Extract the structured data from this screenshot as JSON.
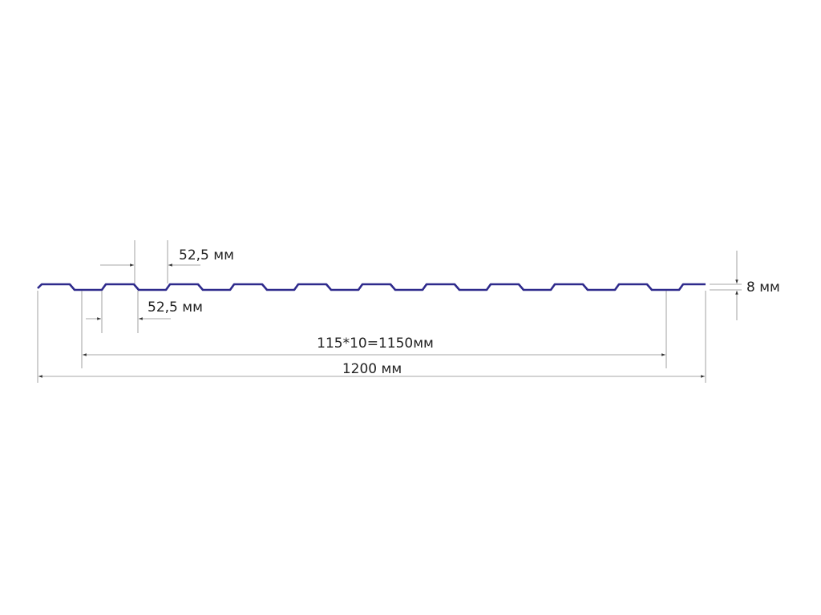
{
  "diagram": {
    "profile_color": "#2e2a8c",
    "dimension_color": "#8a8a8a",
    "labels": {
      "top_pitch": "52,5 мм",
      "bottom_pitch": "52,5 мм",
      "height": "8 мм",
      "working_width": "115*10=1150мм",
      "total_width": "1200 мм"
    }
  }
}
